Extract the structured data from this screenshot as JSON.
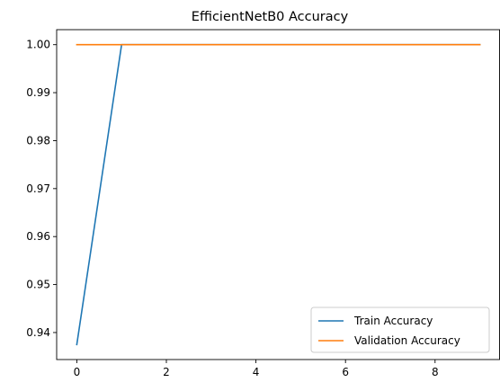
{
  "chart_data": {
    "type": "line",
    "title": "EfficientNetB0 Accuracy",
    "xlabel": "",
    "ylabel": "",
    "x": [
      0,
      1,
      2,
      3,
      4,
      5,
      6,
      7,
      8,
      9
    ],
    "series": [
      {
        "name": "Train Accuracy",
        "color": "#1f77b4",
        "values": [
          0.9375,
          1.0,
          1.0,
          1.0,
          1.0,
          1.0,
          1.0,
          1.0,
          1.0,
          1.0
        ]
      },
      {
        "name": "Validation Accuracy",
        "color": "#ff7f0e",
        "values": [
          1.0,
          1.0,
          1.0,
          1.0,
          1.0,
          1.0,
          1.0,
          1.0,
          1.0,
          1.0
        ]
      }
    ],
    "xlim": [
      -0.45,
      9.45
    ],
    "ylim": [
      0.93437,
      1.00313
    ],
    "xticks": [
      0,
      2,
      4,
      6,
      8
    ],
    "xtick_labels": [
      "0",
      "2",
      "4",
      "6",
      "8"
    ],
    "yticks": [
      0.94,
      0.95,
      0.96,
      0.97,
      0.98,
      0.99,
      1.0
    ],
    "ytick_labels": [
      "0.94",
      "0.95",
      "0.96",
      "0.97",
      "0.98",
      "0.99",
      "1.00"
    ],
    "grid": false,
    "legend_position": "lower-right"
  }
}
